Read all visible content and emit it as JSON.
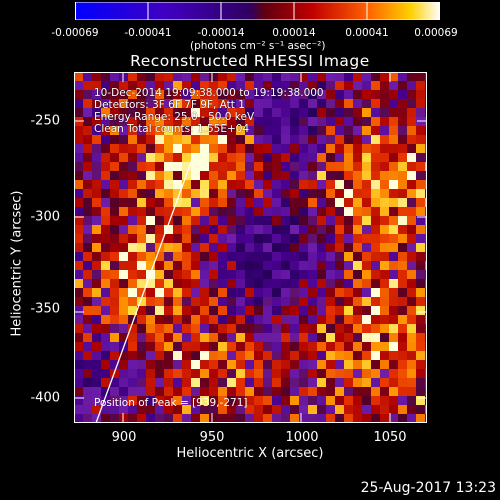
{
  "colorbar": {
    "ticks": [
      "-0.00069",
      "-0.00041",
      "-0.00014",
      "0.00014",
      "0.00041",
      "0.00069"
    ],
    "units": "(photons cm⁻² s⁻¹ asec⁻²)"
  },
  "plot": {
    "title": "Reconstructed RHESSI Image",
    "xlabel": "Heliocentric X (arcsec)",
    "ylabel": "Heliocentric Y (arcsec)",
    "xticks": [
      "900",
      "950",
      "1000",
      "1050"
    ],
    "yticks": [
      "-250",
      "-300",
      "-350",
      "-400"
    ],
    "info": [
      "10-Dec-2014 19:09:38.000 to 19:19:38.000",
      "Detectors: 3F 6F 7F 9F, Att 1",
      "Energy Range: 25.0 - 50.0 keV",
      "Clean     Total counts: 1.55E+04"
    ],
    "peak": "Position of Peak = [939,-271]"
  },
  "datestamp": "25-Aug-2017 13:23"
}
